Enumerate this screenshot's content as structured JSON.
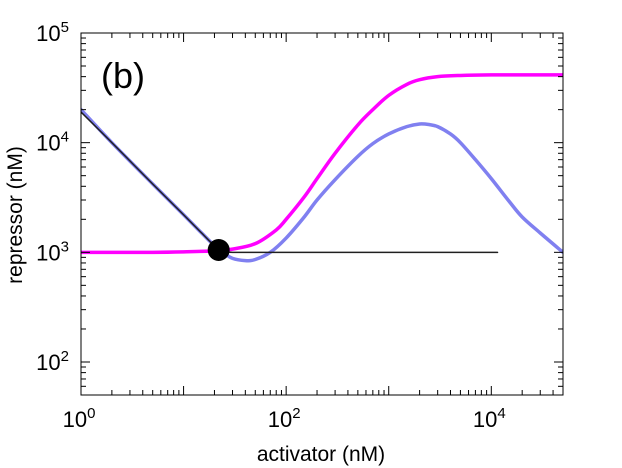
{
  "chart_data": {
    "type": "line",
    "panel_label": "(b)",
    "xlabel": "activator (nM)",
    "ylabel": "repressor (nM)",
    "xscale": "log",
    "yscale": "log",
    "xlim": [
      1,
      50000
    ],
    "ylim": [
      50,
      100000
    ],
    "xticks": [
      {
        "value": 1,
        "base": "10",
        "exp": "0"
      },
      {
        "value": 100,
        "base": "10",
        "exp": "2"
      },
      {
        "value": 10000,
        "base": "10",
        "exp": "4"
      }
    ],
    "yticks": [
      {
        "value": 100,
        "base": "10",
        "exp": "2"
      },
      {
        "value": 1000,
        "base": "10",
        "exp": "3"
      },
      {
        "value": 10000,
        "base": "10",
        "exp": "4"
      },
      {
        "value": 100000,
        "base": "10",
        "exp": "5"
      }
    ],
    "grid": false,
    "series": [
      {
        "color": "#ff00ff",
        "x": [
          1,
          2,
          5,
          10,
          20,
          30,
          50,
          80,
          100,
          150,
          200,
          300,
          500,
          700,
          1000,
          1500,
          2000,
          3000,
          5000,
          10000,
          20000,
          50000
        ],
        "y": [
          1000,
          1000,
          1000,
          1010,
          1030,
          1070,
          1200,
          1600,
          2000,
          3200,
          4700,
          8000,
          14500,
          20000,
          27000,
          34000,
          37500,
          40000,
          41000,
          41500,
          41500,
          41500
        ]
      },
      {
        "color": "#8080f0",
        "x": [
          1,
          2,
          5,
          10,
          15,
          20,
          25,
          30,
          40,
          50,
          70,
          100,
          150,
          200,
          300,
          500,
          700,
          1000,
          1500,
          2000,
          2500,
          3000,
          4000,
          5000,
          7000,
          10000,
          15000,
          20000,
          30000,
          50000
        ],
        "y": [
          20000,
          10000,
          4200,
          2200,
          1500,
          1150,
          980,
          880,
          840,
          860,
          1000,
          1350,
          2100,
          3000,
          4600,
          7500,
          9800,
          12000,
          14000,
          14800,
          14600,
          14000,
          12000,
          10000,
          7000,
          4700,
          2900,
          2100,
          1500,
          1000
        ]
      },
      {
        "color": "#202020",
        "x": [
          1,
          2,
          5,
          10,
          15,
          20,
          25,
          30,
          50,
          100,
          300,
          1000,
          3000,
          7000,
          9500,
          11000,
          11500,
          11000,
          10000,
          8000,
          5000,
          3000,
          2000,
          1000,
          500,
          300,
          150,
          100,
          70,
          50,
          40,
          35
        ],
        "y": [
          19000,
          10000,
          4200,
          2200,
          1500,
          1150,
          1030,
          1000,
          1000,
          1000,
          1000,
          1000,
          1000,
          1000,
          1000,
          1000,
          1000,
          1000,
          1000,
          1000,
          1000,
          1000,
          1000,
          1000,
          1000,
          1000,
          1000,
          1000,
          1000,
          1000,
          1000,
          1000
        ]
      }
    ],
    "marker": {
      "x": 22,
      "y": 1050,
      "color": "#000000"
    }
  }
}
